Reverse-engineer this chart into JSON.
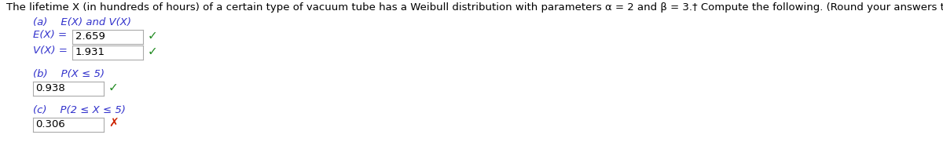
{
  "title": "The lifetime X (in hundreds of hours) of a certain type of vacuum tube has a Weibull distribution with parameters α = 2 and β = 3.† Compute the following. (Round your answers to three decimal places.)",
  "part_a_label": "(a)    E(X) and V(X)",
  "ex_label": "E(X) = ",
  "ex_value": "2.659",
  "vx_label": "V(X) = ",
  "vx_value": "1.931",
  "part_b_label": "(b)    P(X ≤ 5)",
  "b_value": "0.938",
  "part_c_label": "(c)    P(2 ≤ X ≤ 5)",
  "c_value": "0.306",
  "title_color": "#000000",
  "label_color": "#3333cc",
  "value_color": "#000000",
  "check_color": "#228B22",
  "cross_color": "#cc2200",
  "box_border_color": "#aaaaaa",
  "bg_color": "#ffffff",
  "title_fontsize": 9.5,
  "label_fontsize": 9.5,
  "value_fontsize": 9.5,
  "check_fontsize": 11,
  "cross_fontsize": 11
}
